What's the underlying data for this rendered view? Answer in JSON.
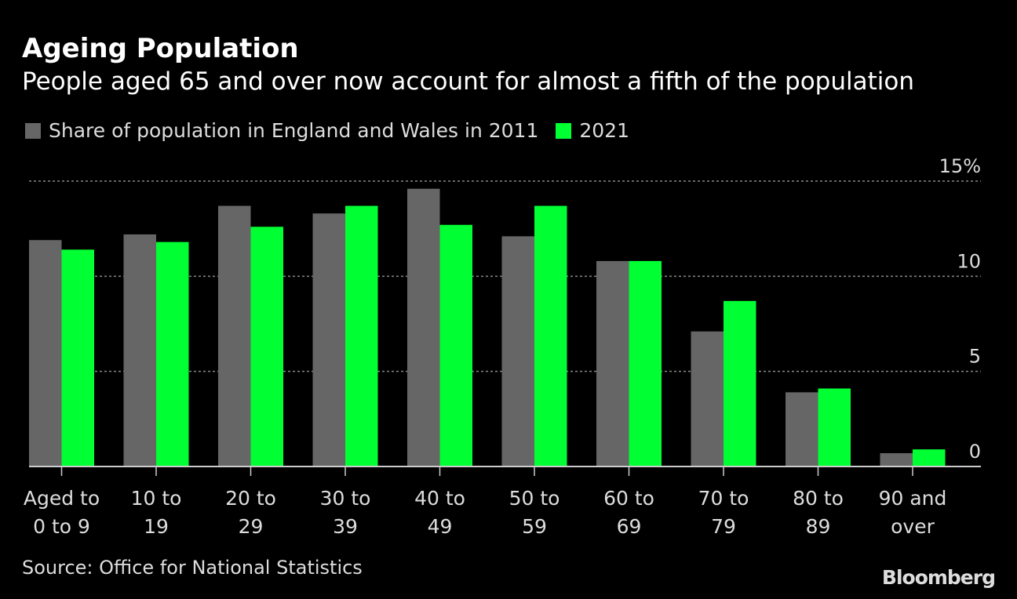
{
  "chart_data": {
    "type": "bar",
    "title": "Ageing Population",
    "subtitle": "People aged 65 and over now account for almost a fifth of the population",
    "categories": [
      [
        "Aged to",
        "0 to 9"
      ],
      [
        "10 to",
        "19"
      ],
      [
        "20 to",
        "29"
      ],
      [
        "30 to",
        "39"
      ],
      [
        "40 to",
        "49"
      ],
      [
        "50 to",
        "59"
      ],
      [
        "60 to",
        "69"
      ],
      [
        "70 to",
        "79"
      ],
      [
        "80 to",
        "89"
      ],
      [
        "90 and",
        "over"
      ]
    ],
    "series": [
      {
        "name": "Share of population in England and Wales in 2011",
        "color": "#666666",
        "values": [
          11.9,
          12.2,
          13.7,
          13.3,
          14.6,
          12.1,
          10.8,
          7.1,
          3.9,
          0.7
        ]
      },
      {
        "name": "2021",
        "color": "#00ff33",
        "values": [
          11.4,
          11.8,
          12.6,
          13.7,
          12.7,
          13.7,
          10.8,
          8.7,
          4.1,
          0.9
        ]
      }
    ],
    "yticks": [
      0,
      5,
      10,
      15
    ],
    "ytick_labels": [
      "0",
      "5",
      "10",
      "15%"
    ],
    "ylim": [
      0,
      15
    ],
    "grid": true,
    "legend_placement": "top-left",
    "xlabel": "",
    "ylabel": ""
  },
  "source": "Source: Office for National Statistics",
  "brand": "Bloomberg"
}
